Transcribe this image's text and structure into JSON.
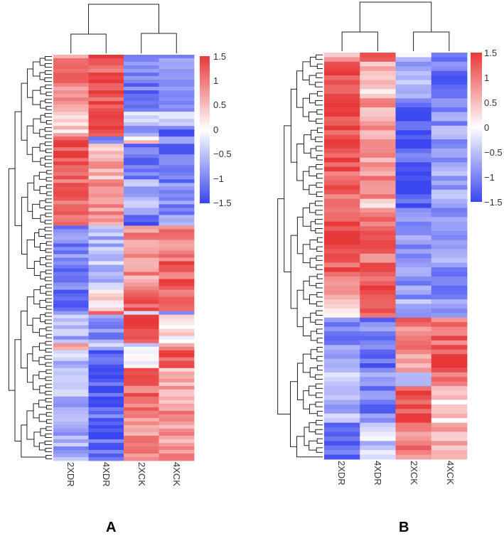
{
  "colors": {
    "low": "#3a46f0",
    "mid": "#ffffff",
    "high": "#e8393a",
    "tree": "#222222"
  },
  "chart_data": [
    {
      "type": "heatmap",
      "panel_label": "A",
      "columns": [
        "2XDR",
        "4XDR",
        "2XCK",
        "4XCK"
      ],
      "column_dendrogram": "((2XDR,4XDR),(2XCK,4XCK))",
      "color_scale": {
        "min": -1.5,
        "max": 1.5,
        "colormap": "blue-white-red",
        "ticks": [
          1.5,
          1,
          0.5,
          0,
          -0.5,
          -1,
          -1.5
        ],
        "tick_labels": [
          "1.5",
          "1",
          "0.5",
          "0",
          "−0.5",
          "−1",
          "−1.5"
        ]
      },
      "row_blocks": [
        {
          "rows": 8,
          "values": [
            0.95,
            1.25,
            -0.9,
            -0.85
          ]
        },
        {
          "rows": 8,
          "values": [
            0.7,
            1.3,
            -1.1,
            -0.8
          ]
        },
        {
          "rows": 4,
          "values": [
            0.1,
            1.45,
            -0.4,
            -0.3
          ]
        },
        {
          "rows": 3,
          "values": [
            0.4,
            1.4,
            -0.7,
            -1.2
          ]
        },
        {
          "rows": 2,
          "values": [
            1.2,
            -1.2,
            0.3,
            -1.0
          ]
        },
        {
          "rows": 10,
          "values": [
            1.35,
            0.6,
            -1.0,
            -1.2
          ]
        },
        {
          "rows": 10,
          "values": [
            1.1,
            0.8,
            -0.7,
            -1.0
          ]
        },
        {
          "rows": 3,
          "values": [
            1.0,
            0.9,
            -1.4,
            -0.6
          ]
        },
        {
          "rows": 10,
          "values": [
            -1.0,
            -0.6,
            0.9,
            1.0
          ]
        },
        {
          "rows": 8,
          "values": [
            -1.1,
            -0.5,
            0.8,
            1.2
          ]
        },
        {
          "rows": 6,
          "values": [
            -1.3,
            0.2,
            1.1,
            0.9
          ]
        },
        {
          "rows": 1,
          "values": [
            -0.6,
            1.4,
            -0.5,
            -0.7
          ]
        },
        {
          "rows": 8,
          "values": [
            -0.6,
            -0.9,
            1.4,
            0.2
          ]
        },
        {
          "rows": 2,
          "values": [
            0.5,
            -0.4,
            -0.3,
            0.9
          ]
        },
        {
          "rows": 5,
          "values": [
            -0.5,
            -1.2,
            0.0,
            1.3
          ]
        },
        {
          "rows": 12,
          "values": [
            -0.6,
            -1.3,
            1.1,
            0.6
          ]
        },
        {
          "rows": 14,
          "values": [
            -0.7,
            -1.2,
            0.9,
            0.8
          ]
        }
      ]
    },
    {
      "type": "heatmap",
      "panel_label": "B",
      "columns": [
        "2XDR",
        "4XDR",
        "2XCK",
        "4XCK"
      ],
      "column_dendrogram": "((2XDR,4XDR),(2XCK,4XCK))",
      "color_scale": {
        "min": -1.5,
        "max": 1.5,
        "colormap": "blue-white-red",
        "ticks": [
          1.5,
          1,
          0.5,
          0,
          -0.5,
          -1,
          -1.5
        ],
        "tick_labels": [
          "1.5",
          "1",
          "0.5",
          "0",
          "−0.5",
          "−1",
          "−1.5"
        ]
      },
      "row_blocks": [
        {
          "rows": 2,
          "values": [
            0.7,
            1.2,
            -0.4,
            -1.3
          ]
        },
        {
          "rows": 8,
          "values": [
            1.3,
            0.4,
            -0.6,
            -1.1
          ]
        },
        {
          "rows": 14,
          "values": [
            1.35,
            0.7,
            -1.3,
            -0.8
          ]
        },
        {
          "rows": 8,
          "values": [
            1.2,
            0.8,
            -1.4,
            -0.7
          ]
        },
        {
          "rows": 2,
          "values": [
            1.0,
            0.2,
            -1.3,
            -0.5
          ]
        },
        {
          "rows": 14,
          "values": [
            1.3,
            1.1,
            -0.9,
            -0.8
          ]
        },
        {
          "rows": 6,
          "values": [
            0.9,
            1.3,
            -0.8,
            -0.9
          ]
        },
        {
          "rows": 4,
          "values": [
            0.3,
            1.4,
            -0.7,
            -0.9
          ]
        },
        {
          "rows": 8,
          "values": [
            -0.9,
            -1.0,
            1.0,
            1.1
          ]
        },
        {
          "rows": 4,
          "values": [
            -0.7,
            -1.1,
            0.6,
            1.4
          ]
        },
        {
          "rows": 3,
          "values": [
            -0.4,
            -0.5,
            -0.6,
            1.2
          ]
        },
        {
          "rows": 8,
          "values": [
            -0.6,
            -1.0,
            1.4,
            0.3
          ]
        },
        {
          "rows": 8,
          "values": [
            -1.2,
            -0.4,
            1.0,
            0.7
          ]
        }
      ]
    }
  ]
}
